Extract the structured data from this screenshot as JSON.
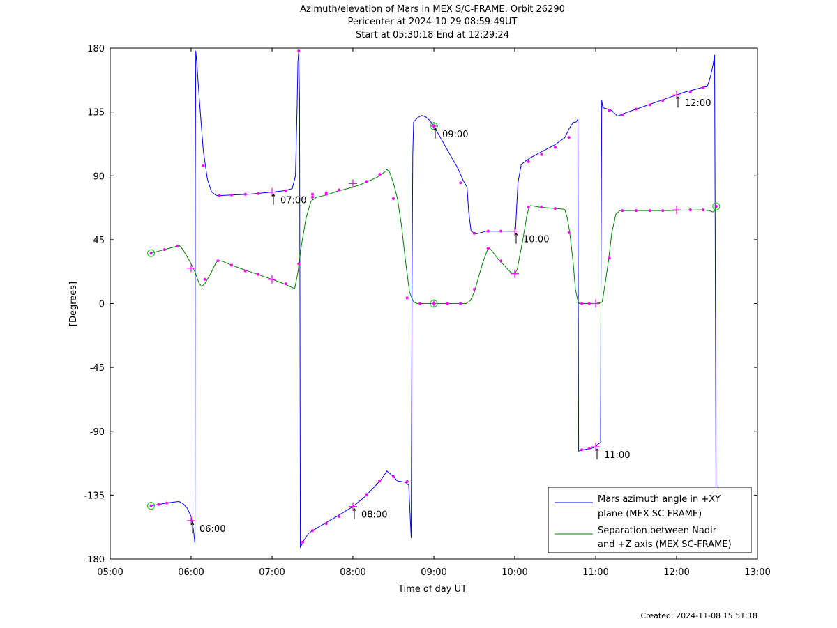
{
  "chart_data": {
    "type": "line",
    "title": [
      "Azimuth/elevation of Mars in MEX S/C-FRAME.  Orbit 26290",
      "Pericenter at 2024-10-29 08:59:49UT",
      "Start at 05:30:18 End at 12:29:24"
    ],
    "xlabel": "Time of day UT",
    "ylabel": "[Degrees]",
    "xlim": [
      5,
      13
    ],
    "ylim": [
      -180,
      180
    ],
    "xticks": [
      5,
      6,
      7,
      8,
      9,
      10,
      11,
      12,
      13
    ],
    "xtick_labels": [
      "05:00",
      "06:00",
      "07:00",
      "08:00",
      "09:00",
      "10:00",
      "11:00",
      "12:00",
      "13:00"
    ],
    "yticks": [
      180,
      135,
      90,
      45,
      0,
      -45,
      -90,
      -135,
      -180
    ],
    "ytick_labels": [
      "180",
      "135",
      "90",
      "45",
      "0",
      "-45",
      "-90",
      "-135",
      "-180"
    ],
    "grid": false,
    "legend_position": "bottom-right",
    "colors": {
      "azimuth": "#0000ff",
      "separation": "#008000",
      "markers": "#ff00ff",
      "endpoints": "#00cc00"
    },
    "series": [
      {
        "name": "Mars azimuth angle in +XY plane (MEX SC-FRAME)",
        "legend_lines": [
          "Mars azimuth angle in +XY",
          "plane (MEX SC-FRAME)"
        ],
        "color": "#0000ff",
        "points": [
          [
            5.505,
            -142.5
          ],
          [
            5.6,
            -141.5
          ],
          [
            5.7,
            -140.5
          ],
          [
            5.8,
            -139.8
          ],
          [
            5.85,
            -139.5
          ],
          [
            5.9,
            -141
          ],
          [
            5.95,
            -144
          ],
          [
            6.0,
            -150
          ],
          [
            6.03,
            -160
          ],
          [
            6.048,
            -170
          ],
          [
            6.052,
            88
          ],
          [
            6.058,
            178
          ],
          [
            6.07,
            170
          ],
          [
            6.1,
            145
          ],
          [
            6.15,
            108
          ],
          [
            6.2,
            88
          ],
          [
            6.25,
            79
          ],
          [
            6.3,
            76.5
          ],
          [
            6.33,
            76
          ],
          [
            6.5,
            76.5
          ],
          [
            6.7,
            77
          ],
          [
            7.0,
            78.5
          ],
          [
            7.15,
            79.5
          ],
          [
            7.25,
            81
          ],
          [
            7.29,
            90
          ],
          [
            7.31,
            140
          ],
          [
            7.32,
            170
          ],
          [
            7.33,
            178
          ],
          [
            7.34,
            145
          ],
          [
            7.345,
            0
          ],
          [
            7.35,
            -172
          ],
          [
            7.38,
            -168
          ],
          [
            7.45,
            -162
          ],
          [
            7.5,
            -160
          ],
          [
            7.65,
            -155
          ],
          [
            7.8,
            -150
          ],
          [
            8.0,
            -143
          ],
          [
            8.15,
            -136
          ],
          [
            8.25,
            -130
          ],
          [
            8.35,
            -124
          ],
          [
            8.42,
            -118
          ],
          [
            8.5,
            -122
          ],
          [
            8.55,
            -125
          ],
          [
            8.6,
            -125.5
          ],
          [
            8.65,
            -126
          ],
          [
            8.69,
            -128
          ],
          [
            8.72,
            -165
          ],
          [
            8.73,
            10
          ],
          [
            8.74,
            105
          ],
          [
            8.75,
            128
          ],
          [
            8.8,
            131
          ],
          [
            8.85,
            132.5
          ],
          [
            8.9,
            131.5
          ],
          [
            8.95,
            129
          ],
          [
            9.0,
            125
          ],
          [
            9.1,
            115
          ],
          [
            9.2,
            105
          ],
          [
            9.3,
            95
          ],
          [
            9.36,
            87
          ],
          [
            9.41,
            82
          ],
          [
            9.43,
            65
          ],
          [
            9.46,
            51
          ],
          [
            9.52,
            49
          ],
          [
            9.65,
            51
          ],
          [
            9.8,
            51
          ],
          [
            10.0,
            51
          ],
          [
            10.01,
            53
          ],
          [
            10.04,
            85
          ],
          [
            10.08,
            98
          ],
          [
            10.15,
            101
          ],
          [
            10.2,
            103
          ],
          [
            10.3,
            106
          ],
          [
            10.5,
            112
          ],
          [
            10.62,
            117
          ],
          [
            10.67,
            123
          ],
          [
            10.72,
            127.5
          ],
          [
            10.76,
            128
          ],
          [
            10.78,
            130
          ],
          [
            10.785,
            0
          ],
          [
            10.79,
            -104
          ],
          [
            10.85,
            -103
          ],
          [
            10.95,
            -102
          ],
          [
            11.0,
            -101
          ],
          [
            11.03,
            -99
          ],
          [
            11.06,
            -98
          ],
          [
            11.065,
            0
          ],
          [
            11.075,
            143
          ],
          [
            11.09,
            138
          ],
          [
            11.15,
            137
          ],
          [
            11.2,
            136
          ],
          [
            11.27,
            132
          ],
          [
            11.35,
            134
          ],
          [
            11.5,
            137
          ],
          [
            11.6,
            139
          ],
          [
            11.7,
            141
          ],
          [
            11.8,
            143
          ],
          [
            11.9,
            145
          ],
          [
            12.0,
            147
          ],
          [
            12.1,
            149
          ],
          [
            12.2,
            150.5
          ],
          [
            12.3,
            152
          ],
          [
            12.38,
            153
          ],
          [
            12.42,
            160
          ],
          [
            12.45,
            168
          ],
          [
            12.47,
            175
          ],
          [
            12.48,
            0
          ],
          [
            12.488,
            -150
          ]
        ]
      },
      {
        "name": "Separation between Nadir and +Z axis (MEX SC-FRAME)",
        "legend_lines": [
          "Separation between Nadir",
          "and +Z axis (MEX SC-FRAME)"
        ],
        "color": "#008000",
        "points": [
          [
            5.505,
            35.5
          ],
          [
            5.6,
            37
          ],
          [
            5.7,
            38.5
          ],
          [
            5.8,
            40
          ],
          [
            5.85,
            41
          ],
          [
            5.9,
            38
          ],
          [
            5.95,
            33
          ],
          [
            6.0,
            28
          ],
          [
            6.05,
            22
          ],
          [
            6.1,
            14
          ],
          [
            6.13,
            12
          ],
          [
            6.17,
            14
          ],
          [
            6.25,
            22
          ],
          [
            6.3,
            28
          ],
          [
            6.33,
            30.5
          ],
          [
            6.4,
            29.5
          ],
          [
            6.5,
            27
          ],
          [
            6.6,
            25
          ],
          [
            6.7,
            23
          ],
          [
            6.8,
            21
          ],
          [
            6.9,
            19
          ],
          [
            7.0,
            17
          ],
          [
            7.1,
            15
          ],
          [
            7.2,
            12.5
          ],
          [
            7.28,
            10.5
          ],
          [
            7.32,
            22
          ],
          [
            7.36,
            40
          ],
          [
            7.42,
            60
          ],
          [
            7.48,
            72
          ],
          [
            7.55,
            75
          ],
          [
            7.6,
            75.5
          ],
          [
            7.7,
            77
          ],
          [
            7.8,
            79
          ],
          [
            7.9,
            80.5
          ],
          [
            8.0,
            82
          ],
          [
            8.1,
            84
          ],
          [
            8.2,
            86.5
          ],
          [
            8.3,
            89
          ],
          [
            8.35,
            91
          ],
          [
            8.4,
            93
          ],
          [
            8.42,
            94.5
          ],
          [
            8.45,
            93
          ],
          [
            8.5,
            85
          ],
          [
            8.55,
            74
          ],
          [
            8.6,
            55
          ],
          [
            8.65,
            30
          ],
          [
            8.7,
            8
          ],
          [
            8.75,
            1
          ],
          [
            8.8,
            0
          ],
          [
            9.0,
            0
          ],
          [
            9.2,
            0
          ],
          [
            9.4,
            0
          ],
          [
            9.45,
            2
          ],
          [
            9.5,
            8
          ],
          [
            9.55,
            18
          ],
          [
            9.6,
            28
          ],
          [
            9.65,
            36
          ],
          [
            9.68,
            39.5
          ],
          [
            9.72,
            37
          ],
          [
            9.8,
            31
          ],
          [
            9.9,
            25
          ],
          [
            9.95,
            22
          ],
          [
            10.0,
            21
          ],
          [
            10.03,
            24
          ],
          [
            10.1,
            45
          ],
          [
            10.15,
            62
          ],
          [
            10.18,
            68.5
          ],
          [
            10.2,
            69
          ],
          [
            10.3,
            68
          ],
          [
            10.4,
            67.5
          ],
          [
            10.5,
            67
          ],
          [
            10.6,
            66.5
          ],
          [
            10.62,
            66
          ],
          [
            10.65,
            60
          ],
          [
            10.68,
            50
          ],
          [
            10.72,
            30
          ],
          [
            10.75,
            10
          ],
          [
            10.78,
            2
          ],
          [
            10.8,
            0
          ],
          [
            11.0,
            0
          ],
          [
            11.08,
            1
          ],
          [
            11.12,
            15
          ],
          [
            11.16,
            31
          ],
          [
            11.2,
            50
          ],
          [
            11.25,
            63
          ],
          [
            11.3,
            65.5
          ],
          [
            11.5,
            65.5
          ],
          [
            11.7,
            65.5
          ],
          [
            11.9,
            65.5
          ],
          [
            12.1,
            65.8
          ],
          [
            12.3,
            66
          ],
          [
            12.4,
            65.5
          ],
          [
            12.45,
            64.5
          ],
          [
            12.48,
            66
          ],
          [
            12.5,
            68.5
          ]
        ]
      }
    ],
    "markers_azimuth": [
      [
        5.6,
        -141.5
      ],
      [
        5.7,
        -140.5
      ],
      [
        6.15,
        97
      ],
      [
        6.35,
        76
      ],
      [
        6.5,
        76.5
      ],
      [
        6.67,
        77
      ],
      [
        6.83,
        77.5
      ],
      [
        7.17,
        79.5
      ],
      [
        7.33,
        178
      ],
      [
        7.5,
        77
      ],
      [
        7.67,
        78
      ],
      [
        7.83,
        80
      ],
      [
        7.38,
        -168
      ],
      [
        7.5,
        -160
      ],
      [
        7.67,
        -155
      ],
      [
        7.83,
        -150
      ],
      [
        8.17,
        -135
      ],
      [
        8.33,
        -125
      ],
      [
        8.5,
        -122
      ],
      [
        8.67,
        -125.5
      ],
      [
        9.33,
        85
      ],
      [
        9.5,
        49.5
      ],
      [
        9.67,
        51
      ],
      [
        9.83,
        51
      ],
      [
        10.17,
        100
      ],
      [
        10.33,
        105
      ],
      [
        10.5,
        110
      ],
      [
        10.67,
        117
      ],
      [
        10.83,
        -103
      ],
      [
        10.92,
        -102
      ],
      [
        11.17,
        136
      ],
      [
        11.33,
        133
      ],
      [
        11.5,
        137
      ],
      [
        11.67,
        140
      ],
      [
        11.83,
        143
      ],
      [
        12.17,
        149
      ],
      [
        12.33,
        152
      ]
    ],
    "markers_separation": [
      [
        5.67,
        38
      ],
      [
        5.83,
        40.5
      ],
      [
        6.17,
        17
      ],
      [
        6.33,
        30
      ],
      [
        6.5,
        27
      ],
      [
        6.67,
        23
      ],
      [
        6.83,
        20.5
      ],
      [
        7.17,
        14
      ],
      [
        7.33,
        28
      ],
      [
        7.5,
        75
      ],
      [
        7.67,
        77
      ],
      [
        7.83,
        80
      ],
      [
        8.17,
        86
      ],
      [
        8.33,
        91
      ],
      [
        8.5,
        74
      ],
      [
        8.67,
        4
      ],
      [
        8.83,
        0
      ],
      [
        9.17,
        0
      ],
      [
        9.33,
        0
      ],
      [
        9.5,
        10
      ],
      [
        9.67,
        39
      ],
      [
        9.83,
        30
      ],
      [
        10.17,
        68
      ],
      [
        10.33,
        68
      ],
      [
        10.5,
        67
      ],
      [
        10.67,
        50
      ],
      [
        10.83,
        0
      ],
      [
        10.92,
        0
      ],
      [
        11.17,
        32
      ],
      [
        11.33,
        65.5
      ],
      [
        11.5,
        65.5
      ],
      [
        11.67,
        65.5
      ],
      [
        11.83,
        65.5
      ],
      [
        12.17,
        66
      ],
      [
        12.33,
        66
      ]
    ],
    "hour_crosses": [
      [
        6.0,
        -153
      ],
      [
        6.0,
        25
      ],
      [
        7.0,
        78.5
      ],
      [
        7.0,
        17
      ],
      [
        8.0,
        -143
      ],
      [
        8.0,
        84.5
      ],
      [
        9.0,
        125
      ],
      [
        9.0,
        0
      ],
      [
        10.0,
        51
      ],
      [
        10.0,
        21
      ],
      [
        11.0,
        -101
      ],
      [
        11.0,
        0
      ],
      [
        12.0,
        147
      ],
      [
        12.0,
        66
      ]
    ],
    "endpoint_circles": [
      [
        5.505,
        -142.5
      ],
      [
        5.505,
        35.5
      ],
      [
        9.0,
        125
      ],
      [
        9.0,
        0
      ],
      [
        12.49,
        68.5
      ]
    ],
    "annotations": [
      {
        "text": "06:00",
        "x": 6.0,
        "y": -153
      },
      {
        "text": "07:00",
        "x": 7.0,
        "y": 78.5
      },
      {
        "text": "08:00",
        "x": 8.0,
        "y": -143
      },
      {
        "text": "09:00",
        "x": 9.0,
        "y": 125
      },
      {
        "text": "10:00",
        "x": 10.0,
        "y": 51
      },
      {
        "text": "11:00",
        "x": 11.0,
        "y": -101
      },
      {
        "text": "12:00",
        "x": 12.0,
        "y": 147
      }
    ]
  },
  "footer": {
    "created": "Created: 2024-11-08 15:51:18"
  }
}
